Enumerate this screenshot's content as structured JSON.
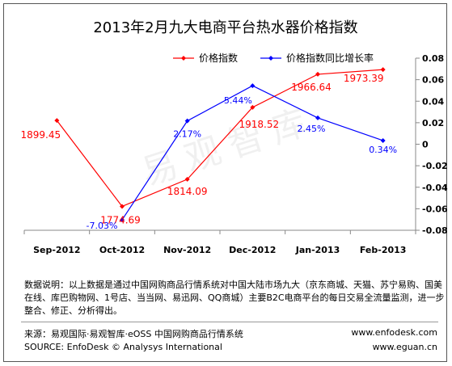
{
  "chart_data": {
    "type": "line",
    "title": "2013年2月九大电商平台热水器价格指数",
    "categories": [
      "Sep-2012",
      "Oct-2012",
      "Nov-2012",
      "Dec-2012",
      "Jan-2013",
      "Feb-2013"
    ],
    "series": [
      {
        "name": "价格指数",
        "axis": "left",
        "color": "#ff0000",
        "values": [
          1899.45,
          1774.69,
          1814.09,
          1918.52,
          1966.64,
          1973.39
        ],
        "labels": [
          "1899.45",
          "1774.69",
          "1814.09",
          "1918.52",
          "1966.64",
          "1973.39"
        ]
      },
      {
        "name": "价格指数同比增长率",
        "axis": "right",
        "color": "#0000ff",
        "values": [
          null,
          -0.0703,
          0.0217,
          0.0544,
          0.0245,
          0.0034
        ],
        "labels": [
          null,
          "-7.03%",
          "2.17%",
          "5.44%",
          "2.45%",
          "0.34%"
        ]
      }
    ],
    "right_axis": {
      "ylim": [
        -0.08,
        0.08
      ],
      "ticks": [
        "0.08",
        "0.06",
        "0.04",
        "0.02",
        "0",
        "-0.02",
        "-0.04",
        "-0.06",
        "-0.08"
      ]
    },
    "left_axis": {
      "ylim": [
        1740,
        1990
      ],
      "visible": false
    },
    "legend_position": "top",
    "grid": false
  },
  "watermark": "易观智库",
  "notes": "数据说明：以上数据是通过中国网购商品行情系统对中国大陆市场九大（京东商城、天猫、苏宁易购、国美在线、库巴购物网、1号店、当当网、易迅网、QQ商城）主要B2C电商平台的每日交易全流量监测，进一步整合、修正、分析得出。",
  "source": {
    "cn": "来源：易观国际·易观智库·eOSS 中国网购商品行情系统",
    "en": "SOURCE: EnfoDesk © Analysys International",
    "url1": "www.enfodesk.com",
    "url2": "www.eguan.cn"
  }
}
